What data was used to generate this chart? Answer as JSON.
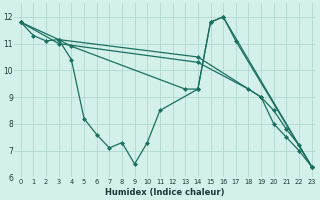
{
  "xlabel": "Humidex (Indice chaleur)",
  "bg_color": "#d4f0eb",
  "grid_color": "#b0d8d0",
  "line_color": "#1a7060",
  "xlim": [
    -0.5,
    23.3
  ],
  "ylim": [
    6.0,
    12.5
  ],
  "xticks": [
    0,
    1,
    2,
    3,
    4,
    5,
    6,
    7,
    8,
    9,
    10,
    11,
    12,
    13,
    14,
    15,
    16,
    17,
    18,
    19,
    20,
    21,
    22,
    23
  ],
  "yticks": [
    6,
    7,
    8,
    9,
    10,
    11,
    12
  ],
  "series": [
    {
      "x": [
        0,
        1,
        2,
        3,
        4,
        5,
        6,
        7,
        8,
        9,
        10,
        11,
        14,
        15,
        16,
        23
      ],
      "y": [
        11.8,
        11.3,
        11.1,
        11.15,
        10.4,
        8.2,
        7.6,
        7.1,
        7.3,
        6.5,
        7.3,
        8.5,
        9.3,
        11.8,
        12.0,
        6.4
      ]
    },
    {
      "x": [
        3,
        4,
        13,
        14,
        15,
        16,
        17,
        23
      ],
      "y": [
        11.15,
        10.9,
        9.3,
        9.3,
        11.8,
        12.0,
        11.1,
        6.4
      ]
    },
    {
      "x": [
        0,
        3,
        14,
        19,
        20,
        21,
        22,
        23
      ],
      "y": [
        11.8,
        11.15,
        10.5,
        9.0,
        8.5,
        7.8,
        7.2,
        6.4
      ]
    },
    {
      "x": [
        0,
        3,
        14,
        18,
        19,
        20,
        21,
        22,
        23
      ],
      "y": [
        11.8,
        11.0,
        10.3,
        9.3,
        9.0,
        8.0,
        7.5,
        7.0,
        6.4
      ]
    }
  ]
}
